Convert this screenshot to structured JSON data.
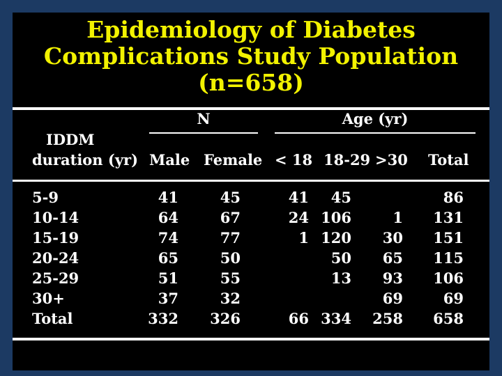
{
  "title": {
    "line1": "Epidemiology of Diabetes",
    "line2": "Complications Study Population",
    "line3": "(n=658)"
  },
  "chart_data": {
    "type": "table",
    "column_groups": [
      {
        "label": "N",
        "columns": [
          "Male",
          "Female"
        ]
      },
      {
        "label": "Age (yr)",
        "columns": [
          "< 18",
          "18-29",
          ">30"
        ]
      }
    ],
    "row_header": [
      "IDDM",
      "duration (yr)"
    ],
    "columns": [
      "Male",
      "Female",
      "< 18",
      "18-29",
      ">30",
      "Total"
    ],
    "rows": [
      {
        "label": "5-9",
        "values": [
          "41",
          "45",
          "41",
          "45",
          "",
          "86"
        ]
      },
      {
        "label": "10-14",
        "values": [
          "64",
          "67",
          "24",
          "106",
          "1",
          "131"
        ]
      },
      {
        "label": "15-19",
        "values": [
          "74",
          "77",
          "1",
          "120",
          "30",
          "151"
        ]
      },
      {
        "label": "20-24",
        "values": [
          "65",
          "50",
          "",
          "50",
          "65",
          "115"
        ]
      },
      {
        "label": "25-29",
        "values": [
          "51",
          "55",
          "",
          "13",
          "93",
          "106"
        ]
      },
      {
        "label": "30+",
        "values": [
          "37",
          "32",
          "",
          "",
          "69",
          "69"
        ]
      },
      {
        "label": "Total",
        "values": [
          "332",
          "326",
          "66",
          "334",
          "258",
          "658"
        ]
      }
    ]
  },
  "colors": {
    "background": "#1c3a63",
    "panel": "#000000",
    "title": "#f2f200",
    "text": "#ffffff"
  }
}
